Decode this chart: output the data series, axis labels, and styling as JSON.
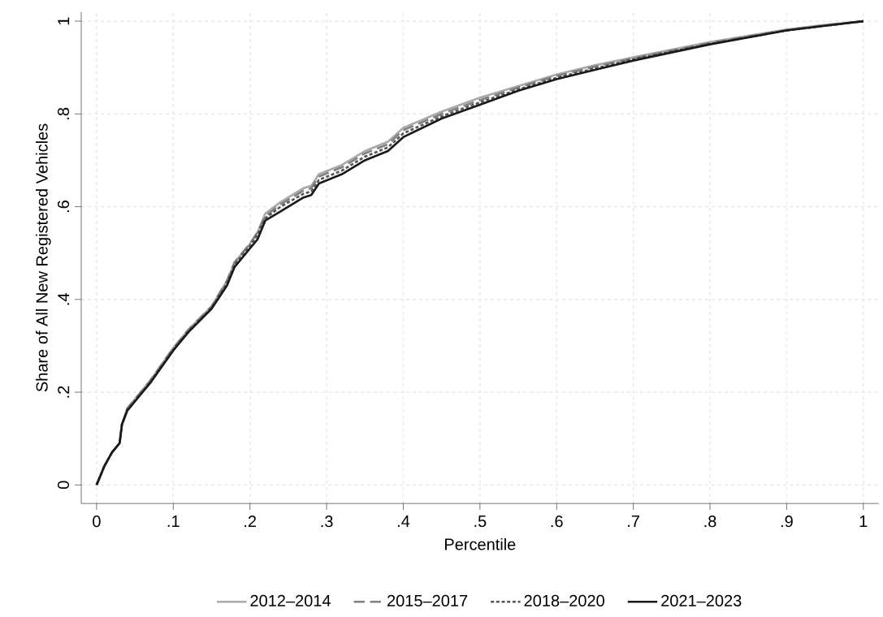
{
  "chart_data": {
    "type": "line",
    "xlabel": "Percentile",
    "ylabel": "Share of All New Registered Vehicles",
    "x": [
      0,
      0.01,
      0.02,
      0.03,
      0.033,
      0.04,
      0.05,
      0.07,
      0.1,
      0.12,
      0.15,
      0.17,
      0.18,
      0.2,
      0.21,
      0.22,
      0.24,
      0.27,
      0.28,
      0.29,
      0.32,
      0.35,
      0.38,
      0.4,
      0.45,
      0.5,
      0.55,
      0.6,
      0.65,
      0.7,
      0.8,
      0.9,
      0.95,
      1
    ],
    "series": [
      {
        "name": "2012–2014",
        "color": "#aaaaaa",
        "line_style": "solid",
        "values": [
          0,
          0.04,
          0.07,
          0.09,
          0.13,
          0.165,
          0.185,
          0.225,
          0.295,
          0.335,
          0.385,
          0.44,
          0.48,
          0.52,
          0.545,
          0.585,
          0.61,
          0.64,
          0.645,
          0.67,
          0.69,
          0.72,
          0.74,
          0.77,
          0.805,
          0.835,
          0.86,
          0.885,
          0.905,
          0.922,
          0.955,
          0.982,
          0.992,
          1
        ]
      },
      {
        "name": "2015–2017",
        "color": "#808080",
        "line_style": "dashed",
        "values": [
          0,
          0.04,
          0.07,
          0.09,
          0.13,
          0.165,
          0.185,
          0.225,
          0.295,
          0.335,
          0.385,
          0.44,
          0.48,
          0.52,
          0.545,
          0.58,
          0.605,
          0.635,
          0.64,
          0.665,
          0.685,
          0.715,
          0.735,
          0.765,
          0.8,
          0.83,
          0.857,
          0.882,
          0.902,
          0.92,
          0.953,
          0.981,
          0.991,
          1
        ]
      },
      {
        "name": "2018–2020",
        "color": "#555555",
        "line_style": "dotted",
        "values": [
          0,
          0.04,
          0.07,
          0.09,
          0.13,
          0.162,
          0.182,
          0.222,
          0.292,
          0.332,
          0.382,
          0.435,
          0.475,
          0.515,
          0.54,
          0.575,
          0.6,
          0.628,
          0.633,
          0.658,
          0.678,
          0.708,
          0.728,
          0.758,
          0.795,
          0.825,
          0.853,
          0.878,
          0.898,
          0.918,
          0.951,
          0.98,
          0.99,
          1
        ]
      },
      {
        "name": "2021–2023",
        "color": "#1a1a1a",
        "line_style": "solid",
        "values": [
          0,
          0.04,
          0.07,
          0.09,
          0.13,
          0.16,
          0.18,
          0.22,
          0.29,
          0.33,
          0.38,
          0.43,
          0.47,
          0.51,
          0.53,
          0.57,
          0.59,
          0.62,
          0.625,
          0.65,
          0.67,
          0.7,
          0.72,
          0.75,
          0.79,
          0.82,
          0.85,
          0.875,
          0.895,
          0.915,
          0.95,
          0.98,
          0.99,
          1
        ]
      }
    ],
    "xlim": [
      -0.02,
      1.02
    ],
    "ylim": [
      -0.04,
      1.02
    ],
    "xticks": [
      0,
      {
        "value": 0.1,
        "label": ".1"
      },
      {
        "value": 0.2,
        "label": ".2"
      },
      {
        "value": 0.3,
        "label": ".3"
      },
      {
        "value": 0.4,
        "label": ".4"
      },
      {
        "value": 0.5,
        "label": ".5"
      },
      {
        "value": 0.6,
        "label": ".6"
      },
      {
        "value": 0.7,
        "label": ".7"
      },
      {
        "value": 0.8,
        "label": ".8"
      },
      {
        "value": 0.9,
        "label": ".9"
      },
      1
    ],
    "yticks": [
      0,
      {
        "value": 0.2,
        "label": ".2"
      },
      {
        "value": 0.4,
        "label": ".4"
      },
      {
        "value": 0.6,
        "label": ".6"
      },
      {
        "value": 0.8,
        "label": ".8"
      },
      1
    ],
    "grid": true,
    "legend": "bottom",
    "marker": "none"
  }
}
